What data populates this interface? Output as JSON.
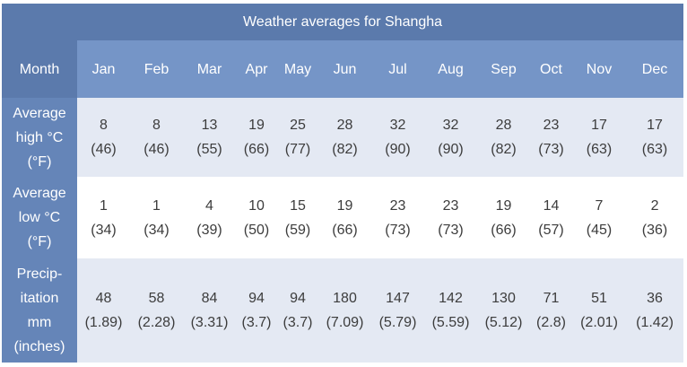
{
  "table": {
    "title": "Weather averages for Shangha",
    "header_label": "Month",
    "months": [
      "Jan",
      "Feb",
      "Mar",
      "Apr",
      "May",
      "Jun",
      "Jul",
      "Aug",
      "Sep",
      "Oct",
      "Nov",
      "Dec"
    ],
    "rows": [
      {
        "label_lines": [
          "Average",
          "high °C",
          "(°F)"
        ],
        "cells": [
          {
            "main": "8",
            "alt": "(46)"
          },
          {
            "main": "8",
            "alt": "(46)"
          },
          {
            "main": "13",
            "alt": "(55)"
          },
          {
            "main": "19",
            "alt": "(66)"
          },
          {
            "main": "25",
            "alt": "(77)"
          },
          {
            "main": "28",
            "alt": "(82)"
          },
          {
            "main": "32",
            "alt": "(90)"
          },
          {
            "main": "32",
            "alt": "(90)"
          },
          {
            "main": "28",
            "alt": "(82)"
          },
          {
            "main": "23",
            "alt": "(73)"
          },
          {
            "main": "17",
            "alt": "(63)"
          },
          {
            "main": "17",
            "alt": "(63)"
          }
        ]
      },
      {
        "label_lines": [
          "Average",
          "low °C",
          "(°F)"
        ],
        "cells": [
          {
            "main": "1",
            "alt": "(34)"
          },
          {
            "main": "1",
            "alt": "(34)"
          },
          {
            "main": "4",
            "alt": "(39)"
          },
          {
            "main": "10",
            "alt": "(50)"
          },
          {
            "main": "15",
            "alt": "(59)"
          },
          {
            "main": "19",
            "alt": "(66)"
          },
          {
            "main": "23",
            "alt": "(73)"
          },
          {
            "main": "23",
            "alt": "(73)"
          },
          {
            "main": "19",
            "alt": "(66)"
          },
          {
            "main": "14",
            "alt": "(57)"
          },
          {
            "main": "7",
            "alt": "(45)"
          },
          {
            "main": "2",
            "alt": "(36)"
          }
        ]
      },
      {
        "label_lines": [
          "Precip-",
          "itation",
          "mm",
          "(inches)"
        ],
        "cells": [
          {
            "main": "48",
            "alt": "(1.89)"
          },
          {
            "main": "58",
            "alt": "(2.28)"
          },
          {
            "main": "84",
            "alt": "(3.31)"
          },
          {
            "main": "94",
            "alt": "(3.7)"
          },
          {
            "main": "94",
            "alt": "(3.7)"
          },
          {
            "main": "180",
            "alt": "(7.09)"
          },
          {
            "main": "147",
            "alt": "(5.79)"
          },
          {
            "main": "142",
            "alt": "(5.59)"
          },
          {
            "main": "130",
            "alt": "(5.12)"
          },
          {
            "main": "71",
            "alt": "(2.8)"
          },
          {
            "main": "51",
            "alt": "(2.01)"
          },
          {
            "main": "36",
            "alt": "(1.42)"
          }
        ]
      }
    ]
  }
}
